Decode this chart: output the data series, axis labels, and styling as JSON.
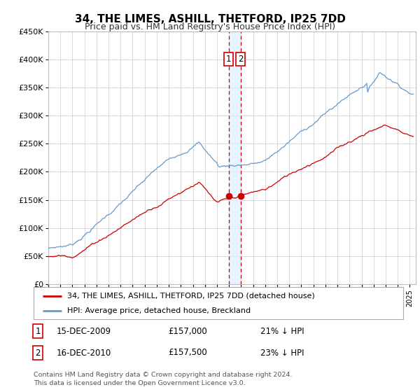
{
  "title": "34, THE LIMES, ASHILL, THETFORD, IP25 7DD",
  "subtitle": "Price paid vs. HM Land Registry's House Price Index (HPI)",
  "legend_line1": "34, THE LIMES, ASHILL, THETFORD, IP25 7DD (detached house)",
  "legend_line2": "HPI: Average price, detached house, Breckland",
  "transaction1_date": "15-DEC-2009",
  "transaction1_price": "£157,000",
  "transaction1_pct": "21% ↓ HPI",
  "transaction2_date": "16-DEC-2010",
  "transaction2_price": "£157,500",
  "transaction2_pct": "23% ↓ HPI",
  "footer1": "Contains HM Land Registry data © Crown copyright and database right 2024.",
  "footer2": "This data is licensed under the Open Government Licence v3.0.",
  "red_color": "#cc0000",
  "blue_color": "#6699cc",
  "grid_color": "#cccccc",
  "background_color": "#ffffff",
  "transaction_vline_color": "#cc0000",
  "transaction_vshade_color": "#ddeeff",
  "ylim": [
    0,
    450000
  ],
  "xlim_start": 1995.0,
  "xlim_end": 2025.5,
  "transaction1_x": 2009.96,
  "transaction2_x": 2010.96,
  "transaction1_y": 157000,
  "transaction2_y": 157500,
  "yticks": [
    0,
    50000,
    100000,
    150000,
    200000,
    250000,
    300000,
    350000,
    400000,
    450000
  ],
  "ytick_labels": [
    "£0",
    "£50K",
    "£100K",
    "£150K",
    "£200K",
    "£250K",
    "£300K",
    "£350K",
    "£400K",
    "£450K"
  ]
}
